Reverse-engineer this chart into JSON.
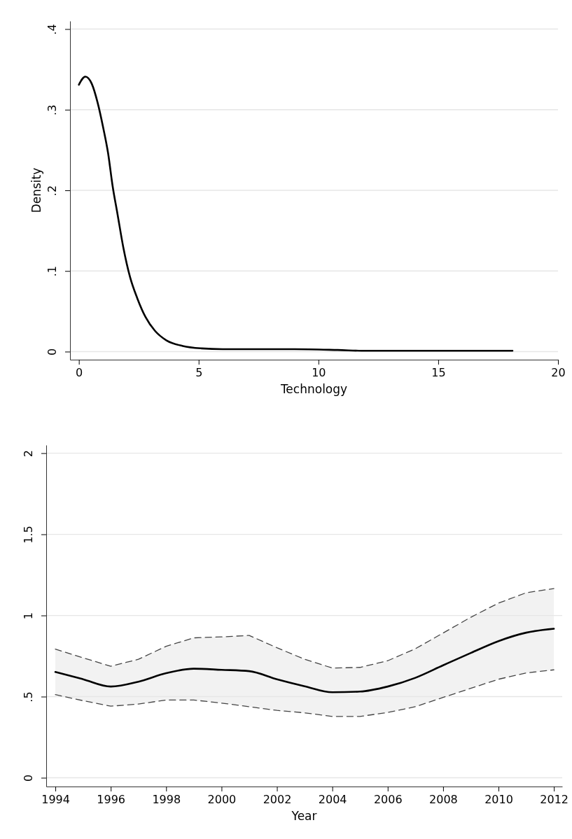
{
  "chart_data": [
    {
      "type": "line",
      "xlabel": "Technology",
      "ylabel": "Density",
      "xlim": [
        -0.37,
        20
      ],
      "ylim": [
        -0.01,
        0.41
      ],
      "xticks": [
        0,
        5,
        10,
        15,
        20
      ],
      "yticks": [
        0,
        {
          "value": 0.1,
          "label": ".1"
        },
        {
          "value": 0.2,
          "label": ".2"
        },
        {
          "value": 0.3,
          "label": ".3"
        },
        {
          "value": 0.4,
          "label": ".4"
        }
      ],
      "grid": "y",
      "line_style": "solid",
      "marker": "none",
      "x": [
        0,
        0.27,
        0.54,
        0.78,
        1.02,
        1.22,
        1.41,
        1.61,
        1.85,
        2.14,
        2.44,
        2.78,
        3.17,
        3.65,
        4.34,
        5.12,
        6.0,
        7.5,
        9.0,
        10.8,
        12.0,
        15.0,
        18.1
      ],
      "series": [
        {
          "color": "#000000",
          "values": [
            0.331,
            0.341,
            0.332,
            0.309,
            0.277,
            0.246,
            0.205,
            0.171,
            0.13,
            0.092,
            0.066,
            0.043,
            0.026,
            0.014,
            0.007,
            0.004,
            0.003,
            0.003,
            0.003,
            0.002,
            0.001,
            0.001,
            0.001
          ]
        }
      ]
    },
    {
      "type": "line",
      "xlabel": "Year",
      "xlim": [
        1993.67,
        2012.3
      ],
      "ylim": [
        -0.054,
        2.05
      ],
      "xticks": [
        1994,
        1996,
        1998,
        2000,
        2002,
        2004,
        2006,
        2008,
        2010,
        2012
      ],
      "yticks": [
        0,
        {
          "value": 0.5,
          "label": ".5"
        },
        1,
        1.5,
        2
      ],
      "grid": "y",
      "line_style": "solid",
      "marker": "none",
      "x": [
        1994,
        1995,
        1996,
        1997,
        1998,
        1999,
        2000,
        2001,
        2002,
        2003,
        2004,
        2005,
        2006,
        2007,
        2008,
        2009,
        2010,
        2011,
        2012
      ],
      "series": [
        {
          "color": "#000000",
          "values": [
            0.652,
            0.607,
            0.562,
            0.592,
            0.644,
            0.672,
            0.665,
            0.657,
            0.607,
            0.564,
            0.527,
            0.531,
            0.562,
            0.616,
            0.693,
            0.769,
            0.842,
            0.894,
            0.918
          ],
          "upper": [
            0.793,
            0.739,
            0.687,
            0.73,
            0.81,
            0.862,
            0.868,
            0.877,
            0.801,
            0.73,
            0.676,
            0.68,
            0.721,
            0.795,
            0.892,
            0.989,
            1.076,
            1.14,
            1.166
          ],
          "lower": [
            0.512,
            0.475,
            0.441,
            0.454,
            0.479,
            0.479,
            0.46,
            0.438,
            0.415,
            0.4,
            0.378,
            0.378,
            0.402,
            0.438,
            0.495,
            0.551,
            0.607,
            0.646,
            0.665
          ]
        },
        {
          "color": "#444444",
          "line_style": "dashed",
          "values": [
            0.793,
            0.739,
            0.687,
            0.73,
            0.81,
            0.862,
            0.868,
            0.877,
            0.801,
            0.73,
            0.676,
            0.68,
            0.721,
            0.795,
            0.892,
            0.989,
            1.076,
            1.14,
            1.166
          ]
        },
        {
          "color": "#444444",
          "line_style": "dashed",
          "values": [
            0.512,
            0.475,
            0.441,
            0.454,
            0.479,
            0.479,
            0.46,
            0.438,
            0.415,
            0.4,
            0.378,
            0.378,
            0.402,
            0.438,
            0.495,
            0.551,
            0.607,
            0.646,
            0.665
          ]
        }
      ]
    }
  ]
}
